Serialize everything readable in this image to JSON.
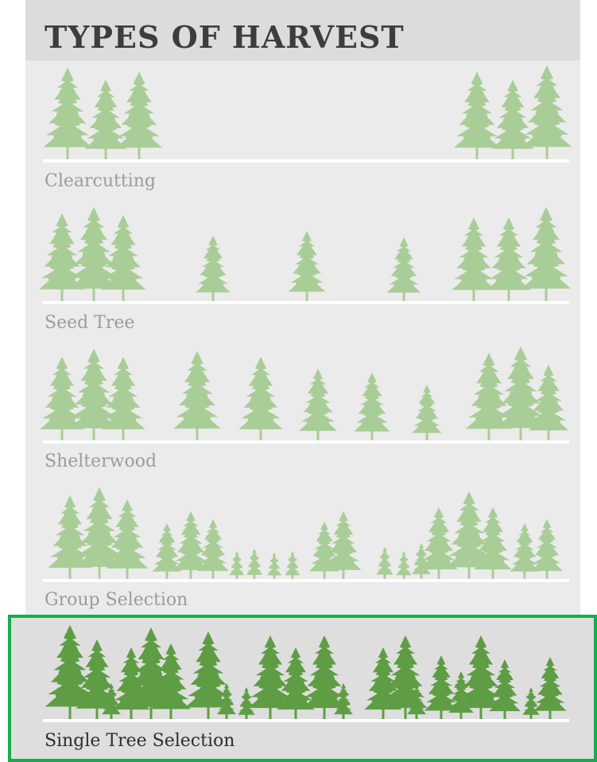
{
  "header": {
    "title": "TYPES OF HARVEST"
  },
  "sections": [
    {
      "label": "Clearcutting"
    },
    {
      "label": "Seed Tree"
    },
    {
      "label": "Shelterwood"
    },
    {
      "label": "Group Selection"
    },
    {
      "label": "Single Tree Selection"
    }
  ]
}
